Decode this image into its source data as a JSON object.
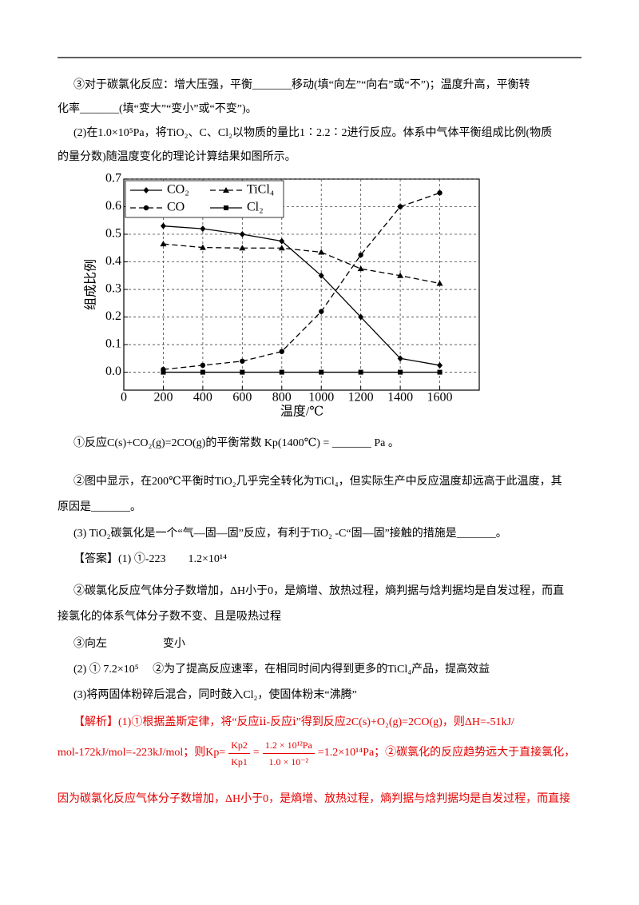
{
  "lines_top": [
    "③对于碳氯化反应：增大压强，平衡_______移动(填“向左”“向右”或“不”)；温度升高，平衡转",
    "化率_______(填“变大”“变小”或“不变”)。",
    "(2)在1.0×10⁵Pa，将TiO₂、C、Cl₂以物质的量比1∶2.2∶2进行反应。体系中气体平衡组成比例(物质",
    "的量分数)随温度变化的理论计算结果如图所示。"
  ],
  "chart_data": {
    "type": "line",
    "xlabel": "温度/℃",
    "ylabel": "组成比例",
    "x": [
      200,
      400,
      600,
      800,
      1000,
      1200,
      1400,
      1600
    ],
    "xlim": [
      0,
      1800
    ],
    "xticks": [
      0,
      200,
      400,
      600,
      800,
      1000,
      1200,
      1400,
      1600
    ],
    "ylim": [
      -0.065,
      0.7
    ],
    "yticks": [
      {
        "value": 0,
        "label": "0.0"
      },
      0.1,
      0.2,
      0.3,
      0.4,
      0.5,
      0.6,
      0.7
    ],
    "grid": true,
    "legend": "upper left",
    "series": [
      {
        "name": "CO₂",
        "color": "#000000",
        "marker": "diamond",
        "dash": false,
        "values": [
          0.53,
          0.52,
          0.5,
          0.475,
          0.35,
          0.2,
          0.05,
          0.025
        ]
      },
      {
        "name": "TiCl₄",
        "color": "#000000",
        "marker": "triangle",
        "dash": true,
        "values": [
          0.465,
          0.452,
          0.45,
          0.45,
          0.435,
          0.375,
          0.35,
          0.322
        ]
      },
      {
        "name": "CO",
        "color": "#000000",
        "marker": "circle",
        "dash": true,
        "values": [
          0.01,
          0.025,
          0.04,
          0.075,
          0.22,
          0.425,
          0.6,
          0.65
        ]
      },
      {
        "name": "Cl₂",
        "color": "#000000",
        "marker": "square",
        "dash": false,
        "values": [
          0,
          0,
          0,
          0,
          0,
          0,
          0,
          0
        ]
      }
    ]
  },
  "lines_bottom": [
    "①反应C(s)+CO₂(g)=2CO(g)的平衡常数 Kp(1400℃) = _______ Pa 。",
    "②图中显示，在200℃平衡时TiO₂几乎完全转化为TiCl₄，但实际生产中反应温度却远高于此温度，其",
    "原因是_______。",
    "(3) TiO₂碳氯化是一个“气—固—固”反应，有利于TiO₂ -C“固—固”接触的措施是_______。",
    "【答案】(1) ①-223　　1.2×10¹⁴",
    "②碳氯化反应气体分子数增加，ΔH小于0，是熵增、放热过程，熵判据与焓判据均是自发过程，而直",
    "接氯化的体系气体分子数不变、且是吸热过程",
    "③向左　　　　　变小",
    "(2) ① 7.2×10⁵　 ②为了提高反应速率，在相同时间内得到更多的TiCl₄产品，提高效益",
    "(3)将两固体粉碎后混合，同时鼓入Cl₂，使固体粉末“沸腾”"
  ],
  "analysis": {
    "line1": "【解析】(1)①根据盖斯定律，将“反应ⅱ-反应ⅰ”得到反应2C(s)+O₂(g)=2CO(g)，则ΔH=-51kJ/",
    "line2_start": "mol-172kJ/mol=-223kJ/mol；则Kp=",
    "frac1_num": "Kp2",
    "frac1_den": "Kp1",
    "eq": "=",
    "frac2_num": "1.2 × 10¹²Pa",
    "frac2_den": "1.0 × 10⁻²",
    "line2_end": "=1.2×10¹⁴Pa；②碳氯化的反应趋势远大于直接氯化，",
    "line3": "因为碳氯化反应气体分子数增加，ΔH小于0，是熵增、放热过程，熵判据与焓判据均是自发过程，而直接"
  }
}
